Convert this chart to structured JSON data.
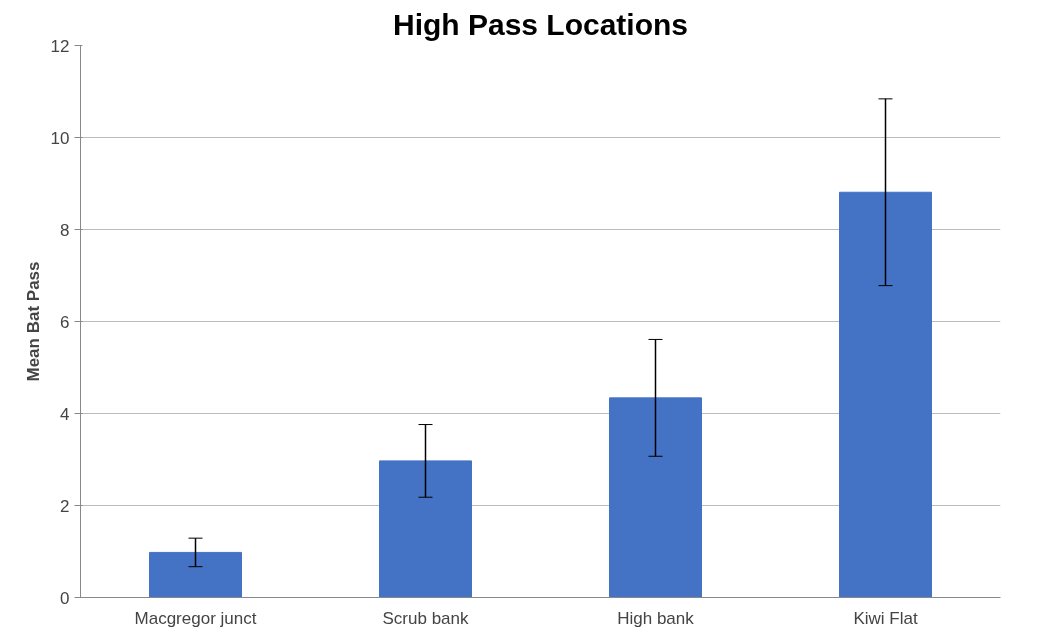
{
  "chart_data": {
    "type": "bar",
    "title": "High Pass Locations",
    "ylabel": "Mean Bat Pass",
    "categories": [
      "Macgregor junct",
      "Scrub bank",
      "High bank",
      "Kiwi Flat"
    ],
    "values": [
      0.98,
      2.97,
      4.34,
      8.81
    ],
    "errors": [
      0.31,
      0.79,
      1.27,
      2.03
    ],
    "color": "#4472c4",
    "ylim": [
      0,
      12
    ],
    "yticks": [
      0,
      2,
      4,
      6,
      8,
      10,
      12
    ],
    "grid": "y"
  }
}
